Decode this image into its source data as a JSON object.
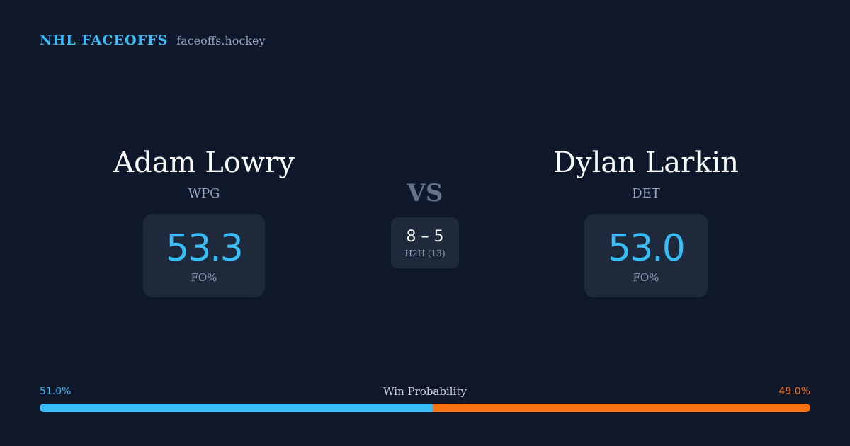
{
  "brand": {
    "name": "NHL FACEOFFS",
    "site": "faceoffs.hockey"
  },
  "players": {
    "left": {
      "name": "Adam Lowry",
      "team": "WPG",
      "stat_value": "53.3",
      "stat_label": "FO%"
    },
    "right": {
      "name": "Dylan Larkin",
      "team": "DET",
      "stat_value": "53.0",
      "stat_label": "FO%"
    }
  },
  "matchup": {
    "vs_label": "VS",
    "h2h_score": "8 – 5",
    "h2h_label": "H2H (13)"
  },
  "win_probability": {
    "title": "Win Probability",
    "left_label": "51.0%",
    "right_label": "49.0%",
    "left_fraction": 0.51,
    "right_fraction": 0.49
  },
  "colors": {
    "background": "#0f172a",
    "card": "#1e293b",
    "accent_left": "#38bdf8",
    "accent_right": "#f97316",
    "muted": "#94a3b8"
  }
}
